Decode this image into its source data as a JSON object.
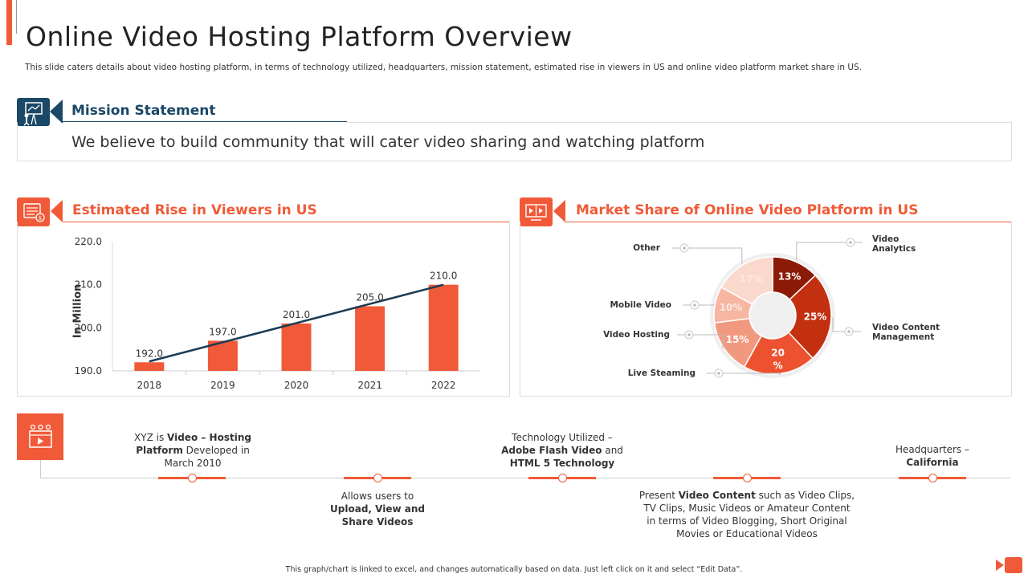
{
  "header": {
    "title": "Online Video Hosting Platform Overview",
    "subtitle": "This slide caters details about video hosting platform, in terms of technology utilized, headquarters, mission statement, estimated rise in viewers in US and online video platform market share in US."
  },
  "mission": {
    "heading": "Mission Statement",
    "text": "We believe to build community that will cater video sharing and watching platform",
    "icon": "presenter-icon"
  },
  "viewers_panel": {
    "heading": "Estimated Rise in Viewers in US",
    "icon": "ticket-dollar-icon"
  },
  "market_panel": {
    "heading": "Market Share of Online Video Platform in US",
    "icon": "video-screens-icon"
  },
  "chart_data": [
    {
      "type": "bar",
      "categories": [
        "2018",
        "2019",
        "2020",
        "2021",
        "2022"
      ],
      "values": [
        192.0,
        197.0,
        201.0,
        205.0,
        210.0
      ],
      "value_labels": [
        "192.0",
        "197.0",
        "201.0",
        "205.0",
        "210.0"
      ],
      "ylabel": "In Million",
      "ylim": [
        190.0,
        220.0
      ],
      "yticks": [
        "190.0",
        "200.0",
        "210.0",
        "220.0"
      ],
      "trendline": true,
      "bar_color": "#f05a38",
      "trend_color": "#1a3b55"
    },
    {
      "type": "pie",
      "donut": true,
      "slices": [
        {
          "label": "Video Analytics",
          "value": 13,
          "text": "13%",
          "color": "#8b1a06"
        },
        {
          "label": "Video Content Management",
          "value": 25,
          "text": "25%",
          "color": "#c3300f"
        },
        {
          "label": "Live Steaming",
          "value": 20,
          "text": "20 %",
          "color": "#ec5230"
        },
        {
          "label": "Video Hosting",
          "value": 15,
          "text": "15%",
          "color": "#f1997f"
        },
        {
          "label": "Mobile Video",
          "value": 10,
          "text": "10%",
          "color": "#f6b6a2"
        },
        {
          "label": "Other",
          "value": 17,
          "text": "17%",
          "color": "#fbd8cc"
        }
      ]
    }
  ],
  "timeline": {
    "icon": "video-player-icon",
    "items": [
      {
        "pre": "XYZ is ",
        "b1": "Video – Hosting",
        "mid": "",
        "b2": "Platform",
        "post": " Developed in",
        "line3": "March 2010"
      },
      {
        "l1": "Allows users to",
        "b1": "Upload, View and",
        "b2": "Share Videos"
      },
      {
        "l1": "Technology Utilized –",
        "b1": "Adobe Flash Video",
        "post1": " and",
        "b2": "HTML 5 Technology"
      },
      {
        "pre": "Present ",
        "b1": "Video Content",
        "post1": " such as Video Clips,",
        "l2": "TV Clips, Music Videos or Amateur Content",
        "l3": "in terms of Video Blogging, Short Original",
        "l4": "Movies or Educational Videos"
      },
      {
        "l1": "Headquarters –",
        "b1": "California"
      }
    ]
  },
  "footer": "This graph/chart is linked to excel, and changes automatically based on data. Just left click on it and select “Edit Data”."
}
